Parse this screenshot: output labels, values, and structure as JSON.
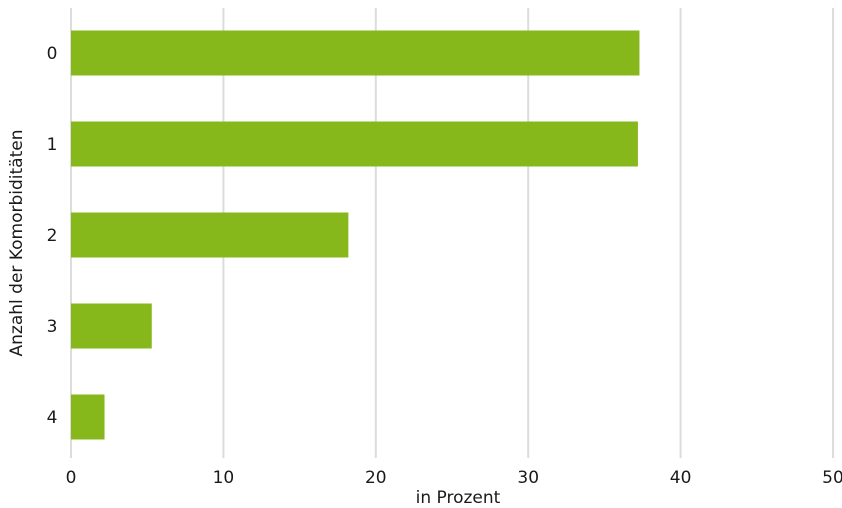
{
  "chart_data": {
    "type": "bar",
    "orientation": "horizontal",
    "categories": [
      "0",
      "1",
      "2",
      "3",
      "4"
    ],
    "values": [
      37.3,
      37.2,
      18.2,
      5.3,
      2.2
    ],
    "title": "",
    "xlabel": "in Prozent",
    "ylabel": "Anzahl der Komorbiditäten",
    "xlim": [
      0,
      50
    ],
    "xticks": [
      "0",
      "10",
      "20",
      "30",
      "40",
      "50"
    ],
    "grid": "vertical",
    "bar_color": "#86b81b",
    "grid_color": "#dcdcdc"
  }
}
